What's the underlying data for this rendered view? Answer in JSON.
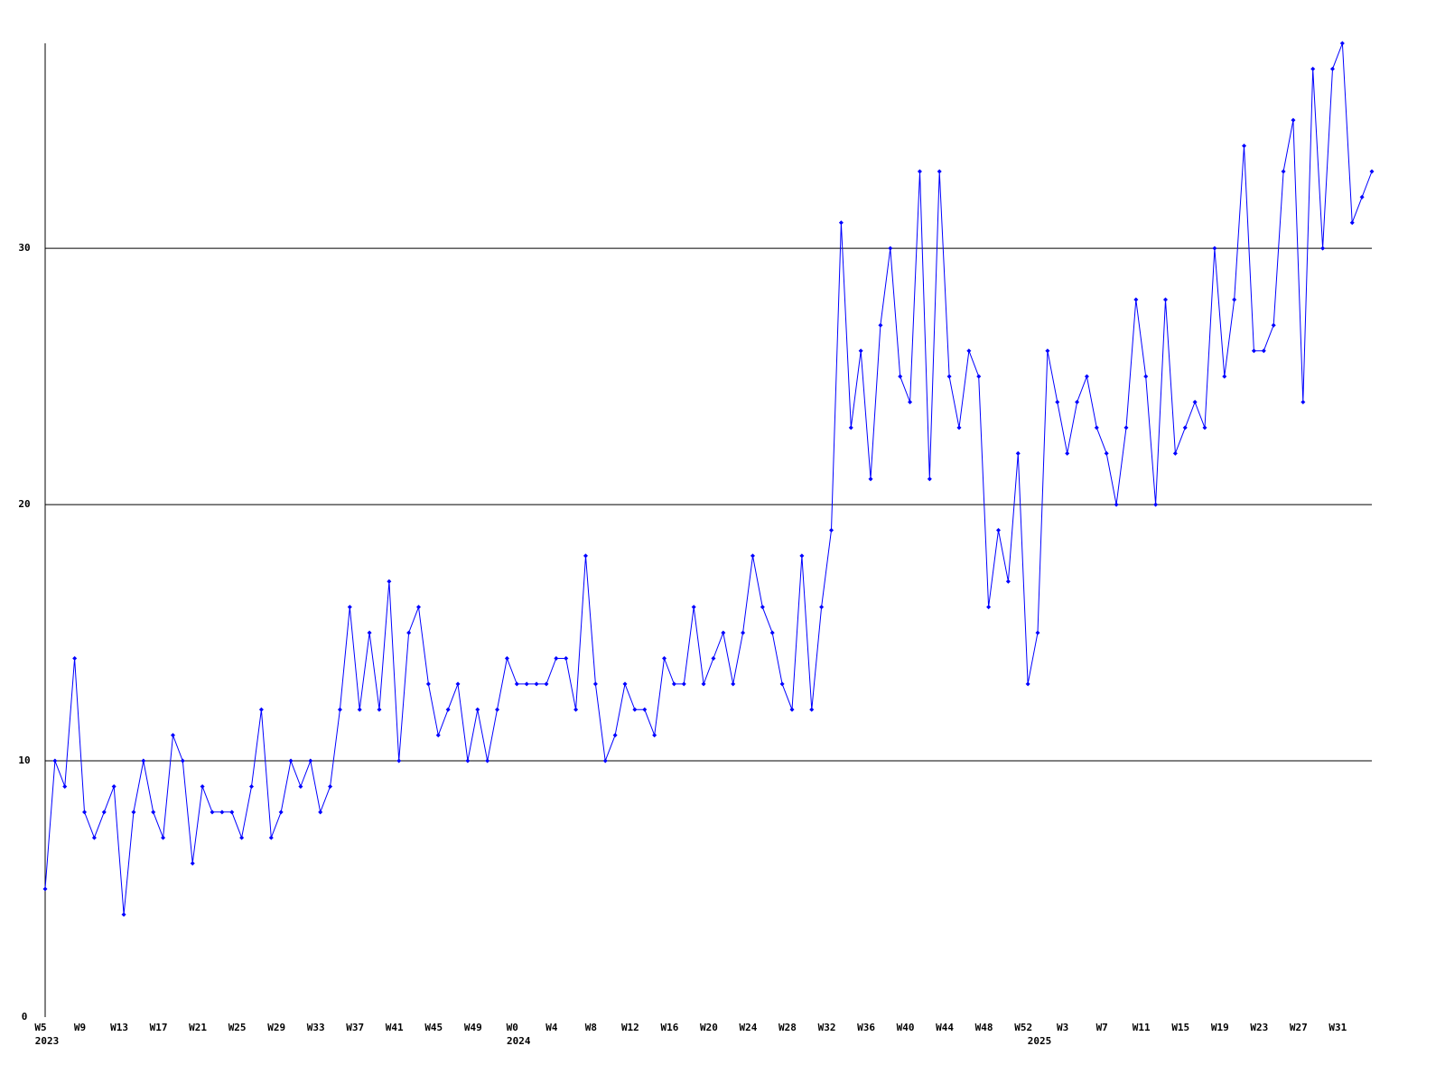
{
  "chart_data": {
    "type": "line",
    "categories": [
      "W5",
      null,
      null,
      null,
      "W9",
      null,
      null,
      null,
      "W13",
      null,
      null,
      null,
      "W17",
      null,
      null,
      null,
      "W21",
      null,
      null,
      null,
      "W25",
      null,
      null,
      null,
      "W29",
      null,
      null,
      null,
      "W33",
      null,
      null,
      null,
      "W37",
      null,
      null,
      null,
      "W41",
      null,
      null,
      null,
      "W45",
      null,
      null,
      null,
      "W49",
      null,
      null,
      null,
      "W0",
      null,
      null,
      null,
      "W4",
      null,
      null,
      null,
      "W8",
      null,
      null,
      null,
      "W12",
      null,
      null,
      null,
      "W16",
      null,
      null,
      null,
      "W20",
      null,
      null,
      null,
      "W24",
      null,
      null,
      null,
      "W28",
      null,
      null,
      null,
      "W32",
      null,
      null,
      null,
      "W36",
      null,
      null,
      null,
      "W40",
      null,
      null,
      null,
      "W44",
      null,
      null,
      null,
      "W48",
      null,
      null,
      null,
      "W52",
      null,
      null,
      null,
      "W3",
      null,
      null,
      null,
      "W7",
      null,
      null,
      null,
      "W11",
      null,
      null,
      null,
      "W15",
      null,
      null,
      null,
      "W19",
      null,
      null,
      null,
      "W23",
      null,
      null,
      null,
      "W27",
      null,
      null,
      null,
      "W31",
      null,
      null,
      null
    ],
    "x_years": [
      "2023",
      null,
      null,
      null,
      null,
      null,
      null,
      null,
      null,
      null,
      null,
      null,
      null,
      null,
      null,
      null,
      null,
      null,
      null,
      null,
      null,
      null,
      null,
      null,
      null,
      null,
      null,
      null,
      null,
      null,
      null,
      null,
      null,
      null,
      null,
      null,
      null,
      null,
      null,
      null,
      null,
      null,
      null,
      null,
      null,
      null,
      null,
      null,
      "2024",
      null,
      null,
      null,
      null,
      null,
      null,
      null,
      null,
      null,
      null,
      null,
      null,
      null,
      null,
      null,
      null,
      null,
      null,
      null,
      null,
      null,
      null,
      null,
      null,
      null,
      null,
      null,
      null,
      null,
      null,
      null,
      null,
      null,
      null,
      null,
      null,
      null,
      null,
      null,
      null,
      null,
      null,
      null,
      null,
      null,
      null,
      null,
      null,
      null,
      null,
      null,
      null,
      "2025",
      null,
      null,
      null,
      null,
      null,
      null,
      null,
      null,
      null,
      null,
      null,
      null,
      null,
      null,
      null,
      null,
      null,
      null,
      null,
      null,
      null,
      null,
      null,
      null,
      null,
      null,
      null,
      null,
      null,
      null,
      null,
      null,
      null,
      null
    ],
    "series": [
      {
        "color": "#0000ff",
        "values": [
          5,
          10,
          9,
          14,
          8,
          7,
          8,
          9,
          4,
          8,
          10,
          8,
          7,
          11,
          10,
          6,
          9,
          8,
          8,
          8,
          7,
          9,
          12,
          7,
          8,
          10,
          9,
          10,
          8,
          9,
          12,
          16,
          12,
          15,
          12,
          17,
          10,
          15,
          16,
          13,
          11,
          12,
          13,
          10,
          12,
          10,
          12,
          14,
          13,
          13,
          13,
          13,
          14,
          14,
          12,
          18,
          13,
          10,
          11,
          13,
          12,
          12,
          11,
          14,
          13,
          13,
          16,
          13,
          14,
          15,
          13,
          15,
          18,
          16,
          15,
          13,
          12,
          18,
          12,
          16,
          19,
          31,
          23,
          26,
          21,
          27,
          30,
          25,
          24,
          33,
          21,
          33,
          25,
          23,
          26,
          25,
          16,
          19,
          17,
          22,
          13,
          15,
          26,
          24,
          22,
          24,
          25,
          23,
          22,
          20,
          23,
          28,
          25,
          20,
          28,
          22,
          23,
          24,
          23,
          30,
          25,
          28,
          34,
          26,
          26,
          27,
          33,
          35,
          24,
          37,
          30,
          37,
          38,
          31,
          32,
          33
        ]
      }
    ],
    "ylim": [
      0,
      38
    ],
    "yticks": [
      0,
      10,
      20,
      30
    ],
    "grid": true
  }
}
